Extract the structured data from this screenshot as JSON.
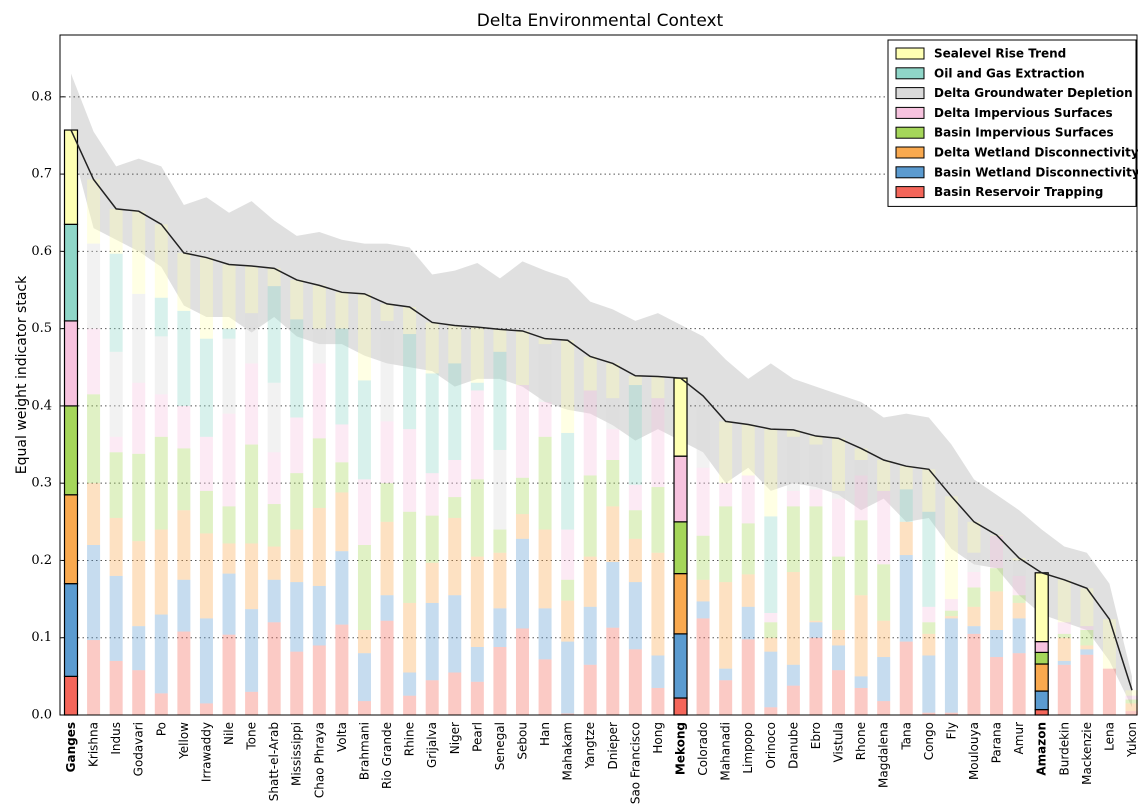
{
  "chart_data": {
    "type": "stacked_bar",
    "title": "Delta Environmental Context",
    "ylabel": "Equal weight indicator stack",
    "categories": [
      "Ganges",
      "Krishna",
      "Indus",
      "Godavari",
      "Po",
      "Yellow",
      "Irrawaddy",
      "Nile",
      "Tone",
      "Shatt-el-Arab",
      "Mississippi",
      "Chao Phraya",
      "Volta",
      "Brahmani",
      "Rio Grande",
      "Rhine",
      "Grijalva",
      "Niger",
      "Pearl",
      "Senegal",
      "Sebou",
      "Han",
      "Mahakam",
      "Yangtze",
      "Dnieper",
      "Sao Francisco",
      "Hong",
      "Mekong",
      "Colorado",
      "Mahanadi",
      "Limpopo",
      "Orinoco",
      "Danube",
      "Ebro",
      "Vistula",
      "Rhone",
      "Magdalena",
      "Tana",
      "Congo",
      "Fly",
      "Moulouya",
      "Parana",
      "Amur",
      "Amazon",
      "Burdekin",
      "Mackenzie",
      "Lena",
      "Yukon"
    ],
    "highlight": [
      "Ganges",
      "Mekong",
      "Amazon"
    ],
    "series": [
      {
        "name": "Basin Reservoir Trapping",
        "color": "#f4665a",
        "values": [
          0.05,
          0.097,
          0.07,
          0.058,
          0.028,
          0.108,
          0.015,
          0.104,
          0.03,
          0.12,
          0.082,
          0.09,
          0.117,
          0.018,
          0.122,
          0.025,
          0.045,
          0.055,
          0.043,
          0.088,
          0.112,
          0.072,
          0.002,
          0.065,
          0.113,
          0.085,
          0.035,
          0.022,
          0.125,
          0.045,
          0.098,
          0.01,
          0.038,
          0.1,
          0.058,
          0.035,
          0.018,
          0.095,
          0.003,
          0.003,
          0.105,
          0.075,
          0.08,
          0.007,
          0.065,
          0.078,
          0.06,
          0.005
        ]
      },
      {
        "name": "Basin Wetland Disconnectivity",
        "color": "#5b9bd0",
        "values": [
          0.12,
          0.123,
          0.11,
          0.057,
          0.102,
          0.067,
          0.11,
          0.079,
          0.107,
          0.055,
          0.09,
          0.077,
          0.095,
          0.062,
          0.033,
          0.03,
          0.1,
          0.1,
          0.045,
          0.05,
          0.116,
          0.066,
          0.093,
          0.075,
          0.085,
          0.087,
          0.042,
          0.083,
          0.022,
          0.015,
          0.042,
          0.072,
          0.027,
          0.02,
          0.032,
          0.015,
          0.057,
          0.112,
          0.074,
          0.122,
          0.01,
          0.035,
          0.045,
          0.024,
          0.005,
          0.007,
          0,
          0
        ]
      },
      {
        "name": "Delta Wetland Disconnectivity",
        "color": "#f9a94f",
        "values": [
          0.115,
          0.08,
          0.075,
          0.11,
          0.11,
          0.09,
          0.11,
          0.039,
          0.085,
          0.043,
          0.068,
          0.101,
          0.076,
          0.03,
          0.095,
          0.09,
          0.052,
          0.1,
          0.117,
          0.072,
          0.032,
          0.102,
          0.053,
          0.065,
          0.072,
          0.056,
          0.133,
          0.078,
          0.028,
          0.112,
          0.042,
          0.018,
          0.12,
          0.002,
          0.02,
          0.105,
          0.047,
          0.043,
          0.028,
          0.003,
          0.025,
          0.05,
          0.02,
          0.035,
          0.03,
          0.005,
          0,
          0.01
        ]
      },
      {
        "name": "Basin Impervious Surfaces",
        "color": "#a5d65a",
        "values": [
          0.115,
          0.115,
          0.085,
          0.113,
          0.12,
          0.08,
          0.055,
          0.048,
          0.128,
          0.055,
          0.073,
          0.09,
          0.039,
          0.11,
          0.05,
          0.118,
          0.061,
          0.027,
          0.1,
          0.03,
          0.047,
          0.12,
          0.027,
          0.105,
          0.06,
          0.037,
          0.085,
          0.067,
          0.057,
          0.098,
          0.066,
          0.02,
          0.085,
          0.148,
          0.095,
          0.097,
          0.073,
          0,
          0.015,
          0.007,
          0.025,
          0.03,
          0.01,
          0.015,
          0.005,
          0.02,
          0,
          0.005
        ]
      },
      {
        "name": "Delta Impervious Surfaces",
        "color": "#f7c3df",
        "values": [
          0.11,
          0.085,
          0.02,
          0.092,
          0.055,
          0.055,
          0.07,
          0.12,
          0.105,
          0.067,
          0.072,
          0.097,
          0.049,
          0.085,
          0.08,
          0.107,
          0.055,
          0.048,
          0.115,
          0,
          0.12,
          0.045,
          0.065,
          0.11,
          0.04,
          0.033,
          0.115,
          0.085,
          0.088,
          0.03,
          0.062,
          0.012,
          0.02,
          0.022,
          0.075,
          0.058,
          0.095,
          0,
          0.02,
          0.015,
          0.02,
          0.042,
          0.025,
          0.014,
          0.015,
          0.005,
          0,
          0.005
        ]
      },
      {
        "name": "Delta Groundwater Depletion",
        "color": "#dadada",
        "values": [
          0,
          0.11,
          0.11,
          0.115,
          0.075,
          0,
          0,
          0.097,
          0.065,
          0.09,
          0,
          0.045,
          0,
          0,
          0.13,
          0,
          0,
          0,
          0,
          0.103,
          0,
          0.075,
          0,
          0,
          0.04,
          0,
          0,
          0,
          0.093,
          0,
          0,
          0,
          0.07,
          0.058,
          0.01,
          0.02,
          0,
          0,
          0,
          0,
          0.025,
          0,
          0.02,
          0,
          0,
          0,
          0,
          0
        ]
      },
      {
        "name": "Oil and Gas Extraction",
        "color": "#8fd6c8",
        "values": [
          0.125,
          0,
          0.127,
          0,
          0.05,
          0.123,
          0.127,
          0.013,
          0,
          0.125,
          0.127,
          0,
          0.124,
          0.128,
          0,
          0.123,
          0.129,
          0.125,
          0.01,
          0.127,
          0,
          0,
          0.125,
          0,
          0,
          0.129,
          0,
          0,
          0,
          0,
          0,
          0.125,
          0,
          0,
          0,
          0,
          0,
          0.042,
          0.123,
          0,
          0,
          0,
          0,
          0,
          0,
          0,
          0,
          0
        ]
      },
      {
        "name": "Sealevel Rise Trend",
        "color": "#feffb3",
        "values": [
          0.122,
          0.083,
          0.058,
          0.107,
          0.095,
          0.075,
          0.105,
          0.083,
          0.061,
          0.023,
          0.051,
          0.056,
          0.047,
          0.112,
          0.022,
          0.035,
          0.066,
          0.049,
          0.072,
          0.029,
          0.07,
          0.007,
          0.12,
          0.044,
          0.045,
          0.012,
          0.028,
          0.101,
          0,
          0.08,
          0.066,
          0.113,
          0.009,
          0.011,
          0.068,
          0.015,
          0.04,
          0.03,
          0.055,
          0.133,
          0.04,
          0.001,
          0.003,
          0.089,
          0.055,
          0.049,
          0.064,
          0.007
        ]
      }
    ],
    "totals": [
      0.757,
      0.693,
      0.655,
      0.652,
      0.635,
      0.598,
      0.592,
      0.583,
      0.581,
      0.578,
      0.563,
      0.556,
      0.547,
      0.545,
      0.532,
      0.528,
      0.508,
      0.504,
      0.502,
      0.499,
      0.497,
      0.487,
      0.485,
      0.464,
      0.455,
      0.439,
      0.438,
      0.436,
      0.413,
      0.38,
      0.376,
      0.37,
      0.369,
      0.361,
      0.358,
      0.345,
      0.33,
      0.322,
      0.318,
      0.283,
      0.25,
      0.233,
      0.203,
      0.184,
      0.175,
      0.164,
      0.124,
      0.032
    ],
    "band_upper": [
      0.83,
      0.755,
      0.71,
      0.72,
      0.71,
      0.66,
      0.67,
      0.65,
      0.665,
      0.64,
      0.62,
      0.625,
      0.615,
      0.61,
      0.61,
      0.605,
      0.57,
      0.575,
      0.585,
      0.565,
      0.587,
      0.575,
      0.565,
      0.535,
      0.525,
      0.51,
      0.52,
      0.505,
      0.49,
      0.46,
      0.435,
      0.455,
      0.435,
      0.425,
      0.415,
      0.405,
      0.385,
      0.39,
      0.385,
      0.35,
      0.305,
      0.285,
      0.265,
      0.24,
      0.218,
      0.21,
      0.17,
      0.05
    ],
    "band_lower": [
      0.74,
      0.63,
      0.615,
      0.6,
      0.58,
      0.53,
      0.515,
      0.515,
      0.495,
      0.515,
      0.49,
      0.48,
      0.48,
      0.465,
      0.455,
      0.45,
      0.445,
      0.425,
      0.435,
      0.435,
      0.425,
      0.405,
      0.395,
      0.39,
      0.375,
      0.355,
      0.37,
      0.355,
      0.34,
      0.3,
      0.32,
      0.29,
      0.3,
      0.295,
      0.285,
      0.265,
      0.28,
      0.25,
      0.255,
      0.215,
      0.195,
      0.19,
      0.155,
      0.13,
      0.12,
      0.11,
      0.07,
      0.01
    ],
    "ylim": [
      0,
      0.88
    ],
    "yticks": [
      {
        "value": 0,
        "label": "0.0"
      },
      {
        "value": 0.1,
        "label": "0.1"
      },
      {
        "value": 0.2,
        "label": "0.2"
      },
      {
        "value": 0.3,
        "label": "0.3"
      },
      {
        "value": 0.4,
        "label": "0.4"
      },
      {
        "value": 0.5,
        "label": "0.5"
      },
      {
        "value": 0.6,
        "label": "0.6"
      },
      {
        "value": 0.7,
        "label": "0.7"
      },
      {
        "value": 0.8,
        "label": "0.8"
      }
    ],
    "grid": true,
    "legend": "upper right"
  }
}
